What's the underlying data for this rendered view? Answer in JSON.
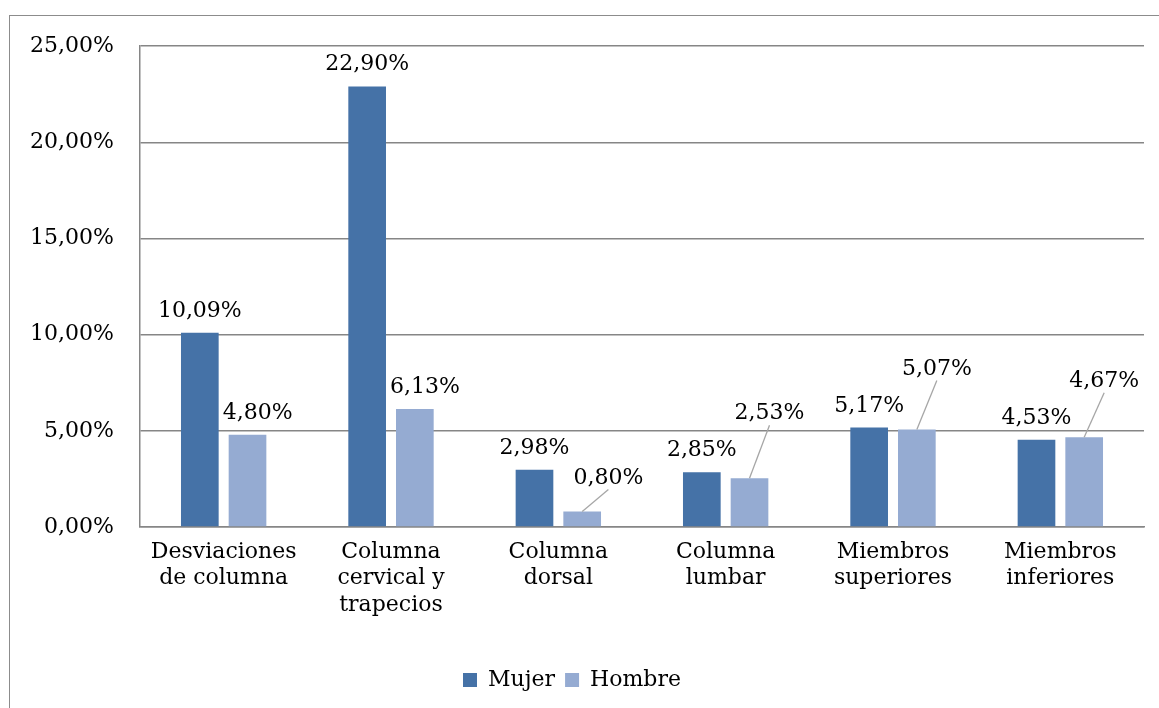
{
  "chart_data": {
    "type": "bar",
    "categories": [
      "Desviaciones de columna",
      "Columna cervical y trapecios",
      "Columna dorsal",
      "Columna lumbar",
      "Miembros superiores",
      "Miembros inferiores"
    ],
    "series": [
      {
        "name": "Mujer",
        "color": "#4572a7",
        "values": [
          10.09,
          22.9,
          2.98,
          2.85,
          5.17,
          4.53
        ],
        "value_labels": [
          "10,09%",
          "22,90%",
          "2,98%",
          "2,85%",
          "5,17%",
          "4,53%"
        ]
      },
      {
        "name": "Hombre",
        "color": "#95abd2",
        "values": [
          4.8,
          6.13,
          0.8,
          2.53,
          5.07,
          4.67
        ],
        "value_labels": [
          "4,80%",
          "6,13%",
          "0,80%",
          "2,53%",
          "5,07%",
          "4,67%"
        ]
      }
    ],
    "ylim": [
      0,
      25
    ],
    "yticks": [
      {
        "value": 0,
        "label": "0,00%"
      },
      {
        "value": 5,
        "label": "5,00%"
      },
      {
        "value": 10,
        "label": "10,00%"
      },
      {
        "value": 15,
        "label": "15,00%"
      },
      {
        "value": 20,
        "label": "20,00%"
      },
      {
        "value": 25,
        "label": "25,00%"
      }
    ],
    "grid": "y",
    "legend": "bottom"
  }
}
